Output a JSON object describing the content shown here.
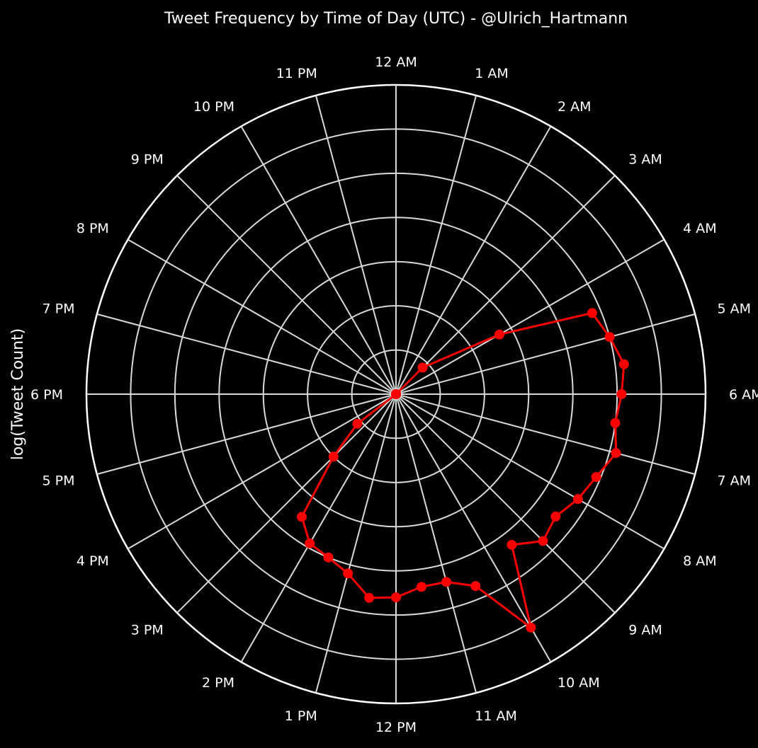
{
  "chart_data": {
    "type": "line",
    "projection": "polar",
    "title": "Tweet Frequency by Time of Day (UTC) - @Ulrich_Hartmann",
    "ylabel": "log(Tweet Count)",
    "xlabel": "",
    "angle_tick_labels": [
      "12 AM",
      "1 AM",
      "2 AM",
      "3 AM",
      "4 AM",
      "5 AM",
      "6 AM",
      "7 AM",
      "8 AM",
      "9 AM",
      "10 AM",
      "11 AM",
      "12 PM",
      "1 PM",
      "2 PM",
      "3 PM",
      "4 PM",
      "5 PM",
      "6 PM",
      "7 PM",
      "8 PM",
      "9 PM",
      "10 PM",
      "11 PM"
    ],
    "angle_direction": "clockwise",
    "zero_at": "top",
    "radial_range": [
      0,
      7
    ],
    "radial_gridlines": [
      1,
      2,
      3,
      4,
      5,
      6,
      7
    ],
    "radial_tick_labels_visible": false,
    "grid": true,
    "series": [
      {
        "color": "#ff0000",
        "marker": "circle",
        "hours": [
          0,
          1,
          2,
          3,
          4,
          4.5,
          5,
          5.5,
          6,
          6.5,
          7,
          7.5,
          8,
          8.5,
          9,
          9.5,
          10,
          10.5,
          11,
          11.5,
          12,
          12.5,
          13,
          13.5,
          14,
          14.5,
          15,
          15.5,
          16,
          16.5,
          17,
          18
        ],
        "values": [
          0,
          0,
          0,
          0.85,
          2.7,
          4.8,
          5.0,
          5.2,
          5.1,
          5.0,
          5.15,
          4.9,
          4.75,
          4.55,
          4.7,
          4.3,
          6.1,
          4.7,
          4.4,
          4.4,
          4.6,
          4.65,
          4.2,
          4.0,
          3.9,
          3.5,
          2.0,
          1.1,
          0,
          0,
          0,
          0
        ]
      }
    ]
  }
}
